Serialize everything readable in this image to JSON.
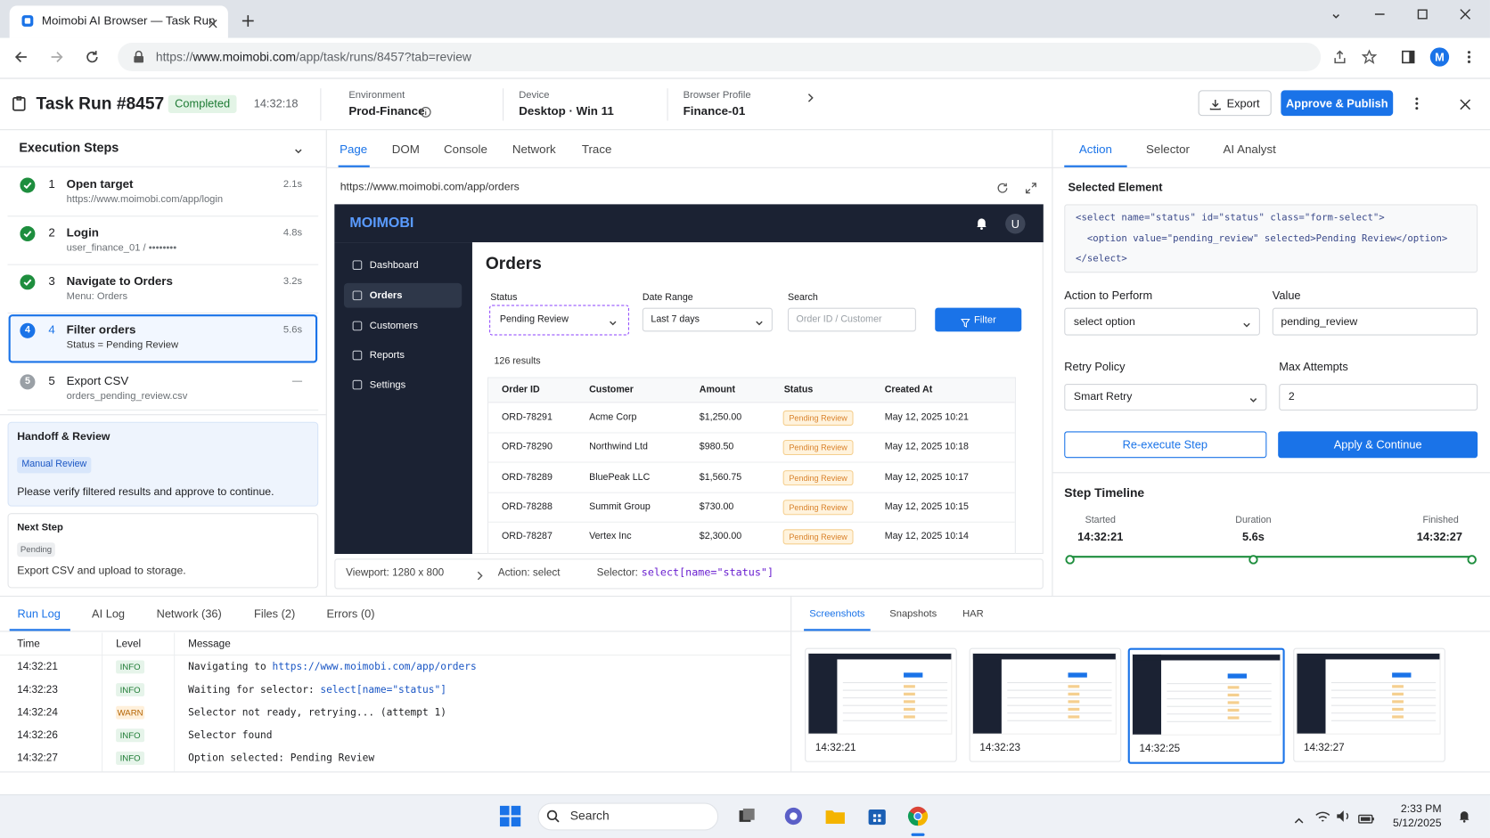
{
  "browser": {
    "tab_title": "Moimobi AI Browser — Task Run",
    "url_prefix": "https://",
    "url_domain": "www.moimobi.com",
    "url_path": "/app/task/runs/8457?tab=review",
    "profile_initial": "M"
  },
  "header": {
    "title": "Task Run #8457",
    "status": "Completed",
    "time": "14:32:18",
    "meta": [
      {
        "label": "Environment",
        "value": "Prod-Finance"
      },
      {
        "label": "Device",
        "value": "Desktop · Win 11"
      },
      {
        "label": "Browser Profile",
        "value": "Finance-01"
      }
    ],
    "export": "Export",
    "approve": "Approve & Publish"
  },
  "steps": {
    "title": "Execution Steps",
    "items": [
      {
        "num": "1",
        "title": "Open target",
        "detail": "https://www.moimobi.com/app/login",
        "duration": "2.1s",
        "state": "done"
      },
      {
        "num": "2",
        "title": "Login",
        "detail": "user_finance_01 / ••••••••",
        "duration": "4.8s",
        "state": "done"
      },
      {
        "num": "3",
        "title": "Navigate to Orders",
        "detail": "Menu: Orders",
        "duration": "3.2s",
        "state": "done"
      },
      {
        "num": "4",
        "title": "Filter orders",
        "detail": "Status = Pending Review",
        "duration": "5.6s",
        "state": "active"
      },
      {
        "num": "5",
        "title": "Export CSV",
        "detail": "orders_pending_review.csv",
        "duration": "—",
        "state": "pending"
      }
    ]
  },
  "handoff": {
    "title": "Handoff & Review",
    "badge": "Manual Review",
    "text": "Please verify filtered results and approve to continue."
  },
  "next_step": {
    "title": "Next Step",
    "badge": "Pending",
    "text": "Export CSV and upload to storage."
  },
  "center_tabs": [
    "Page",
    "DOM",
    "Console",
    "Network",
    "Trace"
  ],
  "page_url": "https://www.moimobi.com/app/orders",
  "app": {
    "brand": "MOIMOBI",
    "avatar": "U",
    "nav": [
      "Dashboard",
      "Orders",
      "Customers",
      "Reports",
      "Settings"
    ],
    "heading": "Orders",
    "filters": [
      {
        "label": "Status",
        "value": "Pending Review"
      },
      {
        "label": "Date Range",
        "value": "Last 7 days"
      },
      {
        "label": "Search",
        "placeholder": "Order ID / Customer"
      }
    ],
    "filter_button": "Filter",
    "results": "126 results",
    "table": {
      "columns": [
        "Order ID",
        "Customer",
        "Amount",
        "Status",
        "Created At"
      ],
      "rows": [
        [
          "ORD-78291",
          "Acme Corp",
          "$1,250.00",
          "Pending Review",
          "May 12, 2025 10:21"
        ],
        [
          "ORD-78290",
          "Northwind Ltd",
          "$980.50",
          "Pending Review",
          "May 12, 2025 10:18"
        ],
        [
          "ORD-78289",
          "BluePeak LLC",
          "$1,560.75",
          "Pending Review",
          "May 12, 2025 10:17"
        ],
        [
          "ORD-78288",
          "Summit Group",
          "$730.00",
          "Pending Review",
          "May 12, 2025 10:15"
        ],
        [
          "ORD-78287",
          "Vertex Inc",
          "$2,300.00",
          "Pending Review",
          "May 12, 2025 10:14"
        ]
      ]
    }
  },
  "viewport_bar": {
    "viewport": "Viewport: 1280 x 800",
    "action": "Action: select",
    "selector_label": "Selector:",
    "selector": "select[name=\"status\"]"
  },
  "right_panel": {
    "tabs": [
      "Action",
      "Selector",
      "AI Analyst"
    ],
    "selected_title": "Selected Element",
    "code": [
      "<select name=\"status\" id=\"status\" class=\"form-select\">",
      "  <option value=\"pending_review\" selected>Pending Review</option>",
      "</select>"
    ],
    "action_label": "Action to Perform",
    "action_value": "select option",
    "value_label": "Value",
    "value": "pending_review",
    "retry_label": "Retry Policy",
    "retry_value": "Smart Retry",
    "max_label": "Max Attempts",
    "max_value": "2",
    "reexecute": "Re-execute Step",
    "apply": "Apply & Continue",
    "timeline": {
      "title": "Step Timeline",
      "started_label": "Started",
      "started": "14:32:21",
      "duration_label": "Duration",
      "duration": "5.6s",
      "finished_label": "Finished",
      "finished": "14:32:27"
    }
  },
  "log": {
    "tabs": [
      "Run Log",
      "AI Log",
      "Network (36)",
      "Files (2)",
      "Errors (0)"
    ],
    "columns": [
      "Time",
      "Level",
      "Message"
    ],
    "rows": [
      {
        "time": "14:32:21",
        "level": "INFO",
        "message": "Navigating to ",
        "highlight": "https://www.moimobi.com/app/orders"
      },
      {
        "time": "14:32:23",
        "level": "INFO",
        "message": "Waiting for selector: ",
        "highlight": "select[name=\"status\"]"
      },
      {
        "time": "14:32:24",
        "level": "WARN",
        "message": "Selector not ready, retrying... (attempt 1)"
      },
      {
        "time": "14:32:26",
        "level": "INFO",
        "message": "Selector found"
      },
      {
        "time": "14:32:27",
        "level": "INFO",
        "message": "Option selected: Pending Review"
      }
    ]
  },
  "screens": {
    "tabs": [
      "Screenshots",
      "Snapshots",
      "HAR"
    ],
    "items": [
      "14:32:21",
      "14:32:23",
      "14:32:25",
      "14:32:27"
    ]
  },
  "taskbar": {
    "search": "Search",
    "time": "2:33 PM",
    "date": "5/12/2025"
  }
}
